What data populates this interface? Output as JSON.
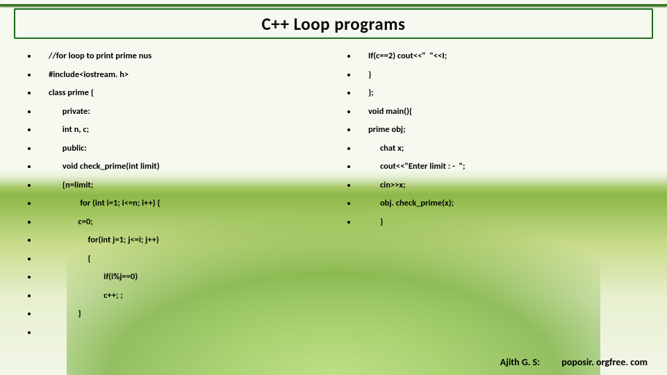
{
  "title": "C++ Loop programs",
  "left_lines": [
    "//for loop to print prime nus",
    "#include<iostream. h>",
    "class prime {",
    "       private:",
    "       int n, c;",
    "       public:",
    "       void check_prime(int limit)",
    "       {n=limit;",
    "                for (int i=1; i<=n; i++) {",
    "               c=0;",
    "                    for(int j=1; j<=i; j++)",
    "                    {",
    "                            if(i%j==0)",
    "                            c++; ;",
    "               }",
    " "
  ],
  "right_lines": [
    "If(c==2) cout<<\"  \"<<I;",
    "}",
    "};",
    "void main(){",
    "prime obj;",
    "      chat x;",
    "      cout<<\"Enter limit : -  \";",
    "      cin>>x;",
    "      obj. check_prime(x);",
    "      }"
  ],
  "footer": {
    "author": "Ajith G. S:",
    "url": "poposir. orgfree. com"
  },
  "colors": {
    "title_border": "#1a6a1a",
    "text": "#000000",
    "bg_light": "#f5f9ef"
  }
}
